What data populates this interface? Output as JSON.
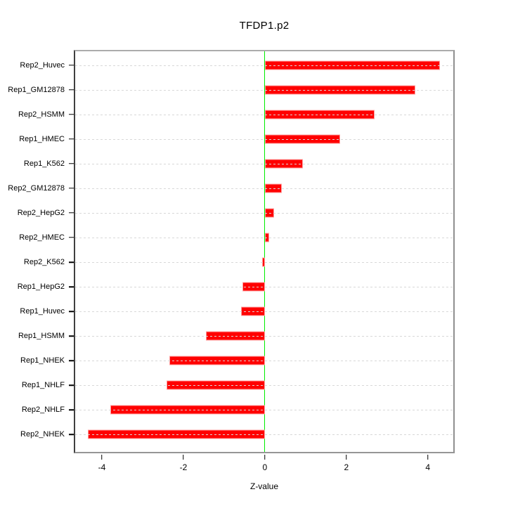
{
  "title": "TFDP1.p2",
  "chart_data": {
    "type": "bar",
    "orientation": "horizontal",
    "title": "TFDP1.p2",
    "xlabel": "Z-value",
    "ylabel": "",
    "categories": [
      "Rep2_Huvec",
      "Rep1_GM12878",
      "Rep2_HSMM",
      "Rep1_HMEC",
      "Rep1_K562",
      "Rep2_GM12878",
      "Rep2_HepG2",
      "Rep2_HMEC",
      "Rep2_K562",
      "Rep1_HepG2",
      "Rep1_Huvec",
      "Rep1_HSMM",
      "Rep1_NHEK",
      "Rep1_NHLF",
      "Rep2_NHLF",
      "Rep2_NHEK"
    ],
    "values": [
      4.33,
      3.72,
      2.71,
      1.86,
      0.94,
      0.42,
      0.22,
      0.11,
      -0.07,
      -0.56,
      -0.59,
      -1.45,
      -2.36,
      -2.43,
      -3.82,
      -4.37
    ],
    "xlim": [
      -4.69,
      4.66
    ],
    "x_ticks": [
      -4,
      -2,
      0,
      2,
      4
    ],
    "x_tick_labels": [
      "-4",
      "-2",
      "0",
      "2",
      "4"
    ],
    "grid": true,
    "grid_style": "dotted",
    "zero_line": true,
    "legend": "none"
  },
  "colors": {
    "bar_fill": "#ff0000",
    "bar_border": "#ff9e9e",
    "zero_line": "#00ee00",
    "grid_line": "#d8d8d8",
    "frame": "#8f8f8f",
    "axis_text": "#000000",
    "background": "#ffffff"
  }
}
